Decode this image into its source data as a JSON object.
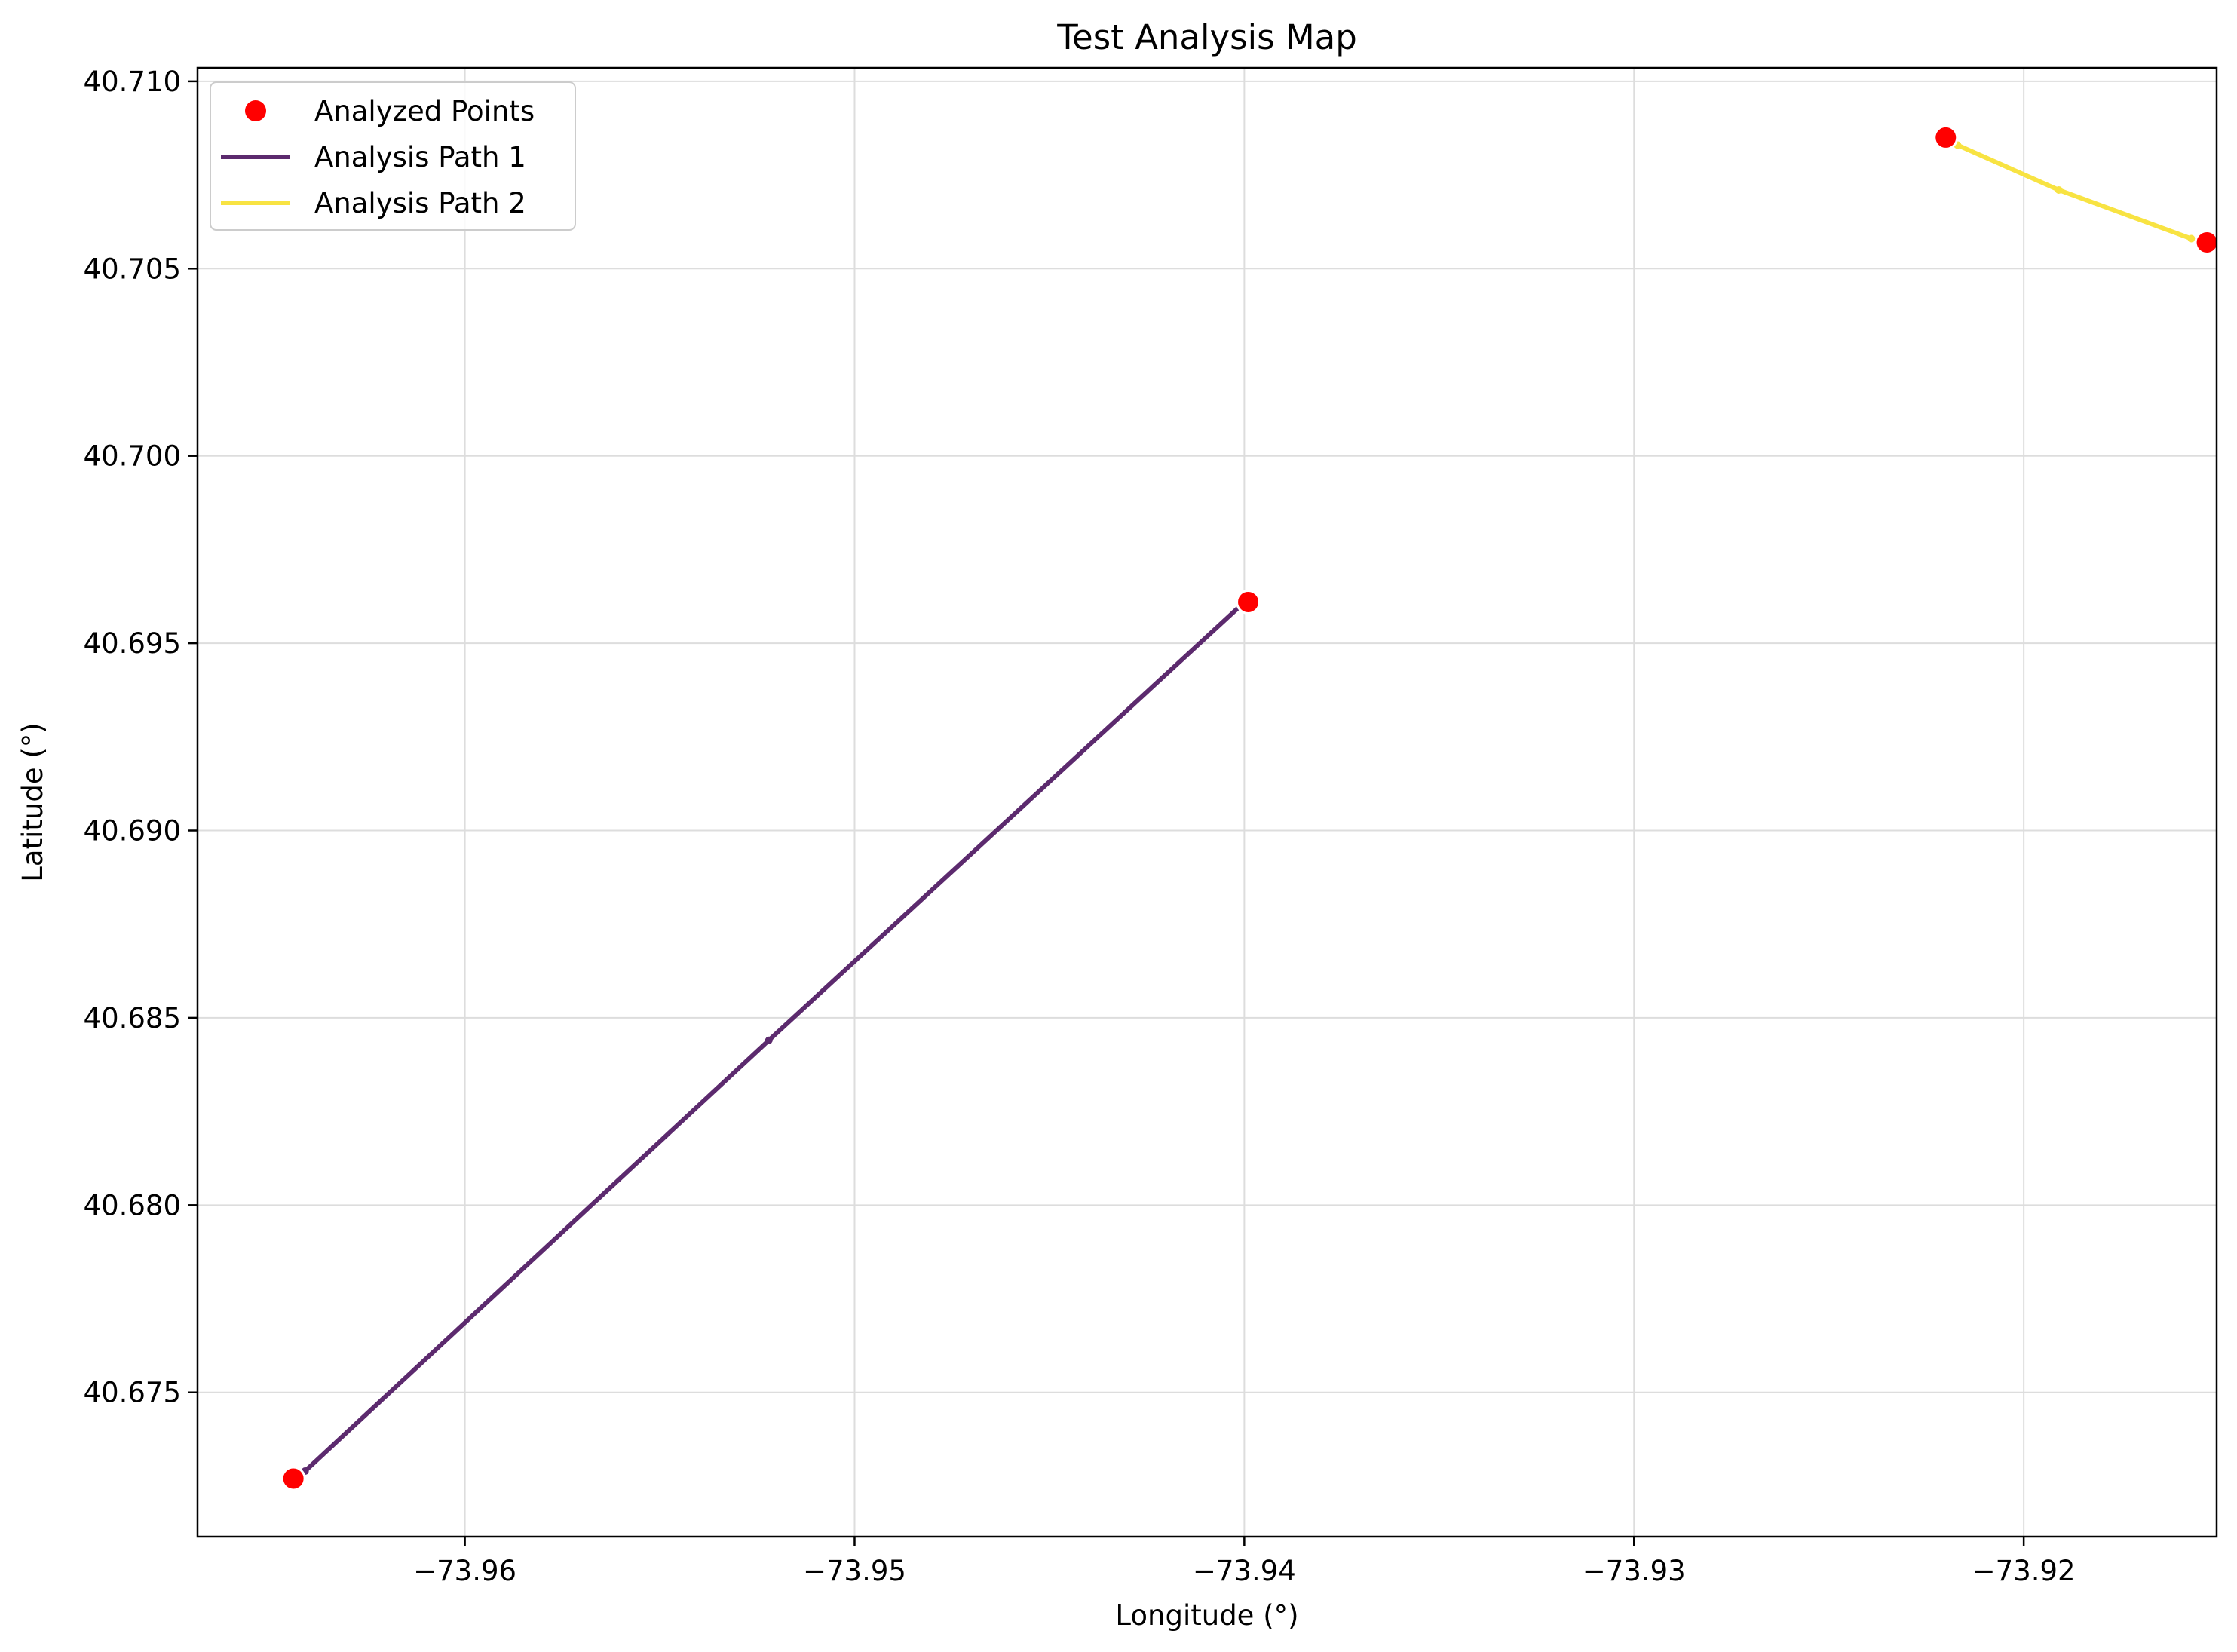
{
  "chart_data": {
    "type": "scatter",
    "title": "Test Analysis Map",
    "xlabel": "Longitude (°)",
    "ylabel": "Latitude (°)",
    "xlim": [
      -73.96686,
      -73.91505
    ],
    "ylim": [
      40.67115,
      40.71036
    ],
    "xticks": [
      -73.96,
      -73.95,
      -73.94,
      -73.93,
      -73.92
    ],
    "xtick_labels": [
      "−73.96",
      "−73.95",
      "−73.94",
      "−73.93",
      "−73.92"
    ],
    "yticks": [
      40.675,
      40.68,
      40.685,
      40.69,
      40.695,
      40.7,
      40.705,
      40.71
    ],
    "ytick_labels": [
      "40.675",
      "40.680",
      "40.685",
      "40.690",
      "40.695",
      "40.700",
      "40.705",
      "40.710"
    ],
    "grid": true,
    "legend_position": "top-left",
    "legend": [
      {
        "label": "Analyzed Points",
        "kind": "marker",
        "color": "#ff0000"
      },
      {
        "label": "Analysis Path 1",
        "kind": "line",
        "color": "#5c2a6e"
      },
      {
        "label": "Analysis Path 2",
        "kind": "line",
        "color": "#f8e342"
      }
    ],
    "points": {
      "name": "Analyzed Points",
      "color": "#ff0000",
      "x": [
        -73.9644,
        -73.9399,
        -73.922,
        -73.9153
      ],
      "y": [
        40.6727,
        40.6961,
        40.7085,
        40.7057
      ]
    },
    "series": [
      {
        "name": "Analysis Path 1",
        "color": "#5c2a6e",
        "x": [
          -73.9641,
          -73.9522,
          -73.9401
        ],
        "y": [
          40.6729,
          40.6844,
          40.696
        ]
      },
      {
        "name": "Analysis Path 2",
        "color": "#f8e342",
        "x": [
          -73.9217,
          -73.9191,
          -73.9157
        ],
        "y": [
          40.7083,
          40.7071,
          40.7058
        ]
      }
    ]
  }
}
